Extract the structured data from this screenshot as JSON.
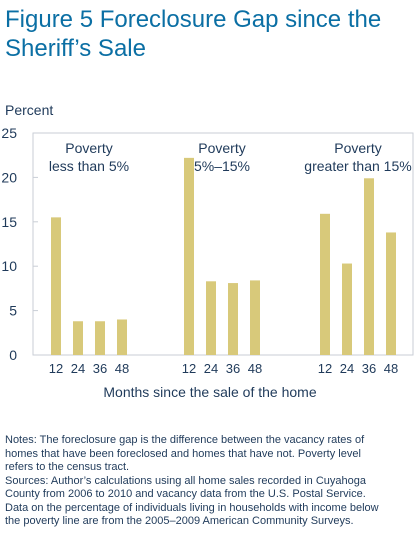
{
  "title": "Figure 5 Foreclosure Gap since the Sheriff’s Sale",
  "colors": {
    "title": "#0b6fa4",
    "bar": "#d8c97a",
    "frame": "#c9ced6",
    "text": "#1f3a5a"
  },
  "chart_data": {
    "type": "bar",
    "ylabel": "Percent",
    "xlabel": "Months since the sale of the home",
    "ylim": [
      0,
      25
    ],
    "yticks": [
      0,
      5,
      10,
      15,
      20,
      25
    ],
    "grid": false,
    "categories": [
      "12",
      "24",
      "36",
      "48"
    ],
    "groups": [
      {
        "label_lines": [
          "Poverty",
          "less than 5%"
        ],
        "values": [
          15.5,
          3.8,
          3.8,
          4.0
        ]
      },
      {
        "label_lines": [
          "Poverty",
          "5%–15%"
        ],
        "values": [
          22.2,
          8.3,
          8.1,
          8.4
        ]
      },
      {
        "label_lines": [
          "Poverty",
          "greater than 15%"
        ],
        "values": [
          15.9,
          10.3,
          19.9,
          13.8
        ]
      }
    ]
  },
  "notes": [
    "Notes: The foreclosure gap is the difference between the vacancy rates of",
    "homes that have been foreclosed and homes that have not. Poverty level",
    "refers to the census tract.",
    "Sources: Author’s calculations using all home sales recorded in Cuyahoga",
    "County from 2006 to 2010 and vacancy data from the U.S. Postal Service.",
    "Data on the percentage of individuals living in households with income below",
    "the poverty line are from the 2005–2009 American Community Surveys."
  ]
}
